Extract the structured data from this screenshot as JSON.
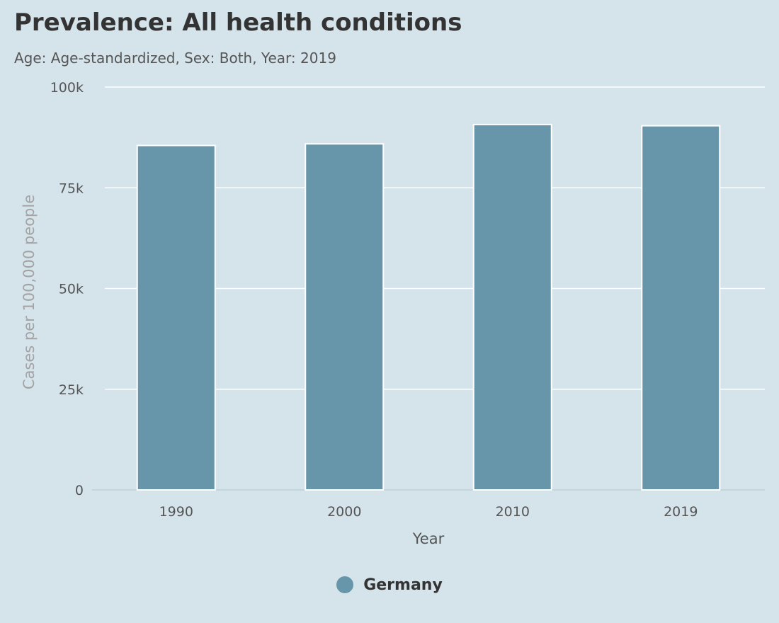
{
  "title": "Prevalence: All health conditions",
  "subtitle": "Age: Age-standardized, Sex: Both, Year: 2019",
  "colors": {
    "background": "#d5e3eb",
    "bar": "#6795a9",
    "bar_stroke": "#ffffff",
    "grid": "#ffffff",
    "tick_text": "#555555",
    "ylabel_text": "#a3a3a3"
  },
  "chart_data": {
    "type": "bar",
    "categories": [
      "1990",
      "2000",
      "2010",
      "2019"
    ],
    "series": [
      {
        "name": "Germany",
        "values": [
          85500,
          85900,
          90700,
          90400
        ],
        "color": "#6795a9"
      }
    ],
    "xlabel": "Year",
    "ylabel": "Cases per 100,000 people",
    "ylim": [
      0,
      100000
    ],
    "yticks": [
      0,
      25000,
      50000,
      75000,
      100000
    ],
    "ytick_labels": [
      "0",
      "25k",
      "50k",
      "75k",
      "100k"
    ],
    "grid": true,
    "legend_position": "bottom-center"
  },
  "legend": {
    "items": [
      {
        "label": "Germany",
        "color": "#6795a9"
      }
    ]
  }
}
